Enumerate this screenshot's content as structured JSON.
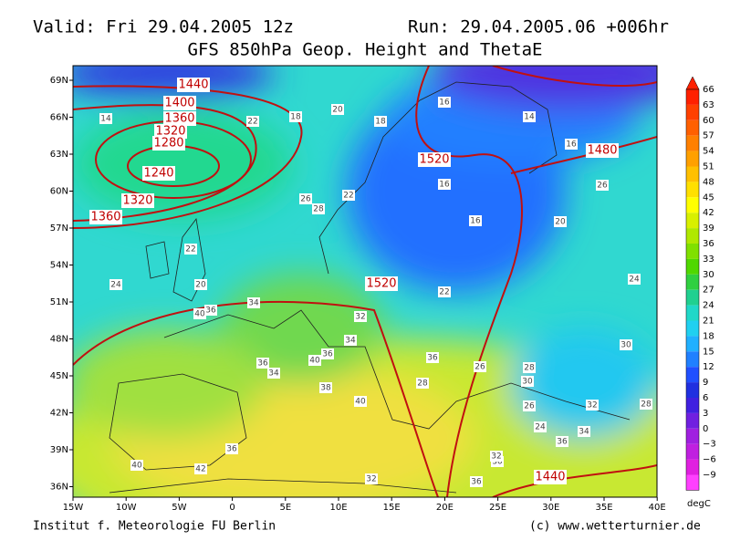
{
  "header": {
    "valid": "Valid: Fri 29.04.2005 12z",
    "run": "Run: 29.04.2005.06 +006hr",
    "title": "GFS 850hPa Geop. Height and ThetaE"
  },
  "lat_labels": [
    "69N",
    "66N",
    "63N",
    "60N",
    "57N",
    "54N",
    "51N",
    "48N",
    "45N",
    "42N",
    "39N",
    "36N"
  ],
  "lon_labels": [
    "15W",
    "10W",
    "5W",
    "0",
    "5E",
    "10E",
    "15E",
    "20E",
    "25E",
    "30E",
    "35E",
    "40E"
  ],
  "colorbar": {
    "ticks": [
      "66",
      "63",
      "60",
      "57",
      "54",
      "51",
      "48",
      "45",
      "42",
      "39",
      "36",
      "33",
      "30",
      "27",
      "24",
      "21",
      "18",
      "15",
      "12",
      "9",
      "6",
      "3",
      "0",
      "−3",
      "−6",
      "−9"
    ],
    "colors": [
      "#ff2000",
      "#ff4000",
      "#ff6000",
      "#ff8000",
      "#ffa000",
      "#ffc000",
      "#ffe000",
      "#ffff00",
      "#d8f000",
      "#b0e800",
      "#80e000",
      "#50d800",
      "#30d040",
      "#20d090",
      "#20d8c8",
      "#20d0f0",
      "#20b0ff",
      "#2080ff",
      "#2050ff",
      "#2030e0",
      "#4020e0",
      "#7020e0",
      "#a020e0",
      "#c020e0",
      "#e020e0",
      "#ff40ff"
    ],
    "unit": "degC"
  },
  "height_labels": [
    "1440",
    "1400",
    "1360",
    "1320",
    "1280",
    "1240",
    "1320",
    "1360",
    "1520",
    "1480",
    "1520",
    "1440"
  ],
  "theta_labels": [
    "14",
    "22",
    "18",
    "20",
    "18",
    "16",
    "14",
    "16",
    "26",
    "22",
    "26",
    "28",
    "16",
    "16",
    "20",
    "22",
    "24",
    "20",
    "22",
    "24",
    "32",
    "34",
    "40",
    "36",
    "34",
    "36",
    "38",
    "36",
    "40",
    "36",
    "34",
    "40",
    "28",
    "26",
    "26",
    "30",
    "28",
    "30",
    "32",
    "28",
    "24",
    "34",
    "36",
    "30",
    "32",
    "36",
    "32",
    "40",
    "42",
    "36"
  ],
  "footer": {
    "left": "Institut f. Meteorologie  FU Berlin",
    "right": "(c) www.wetterturnier.de"
  }
}
